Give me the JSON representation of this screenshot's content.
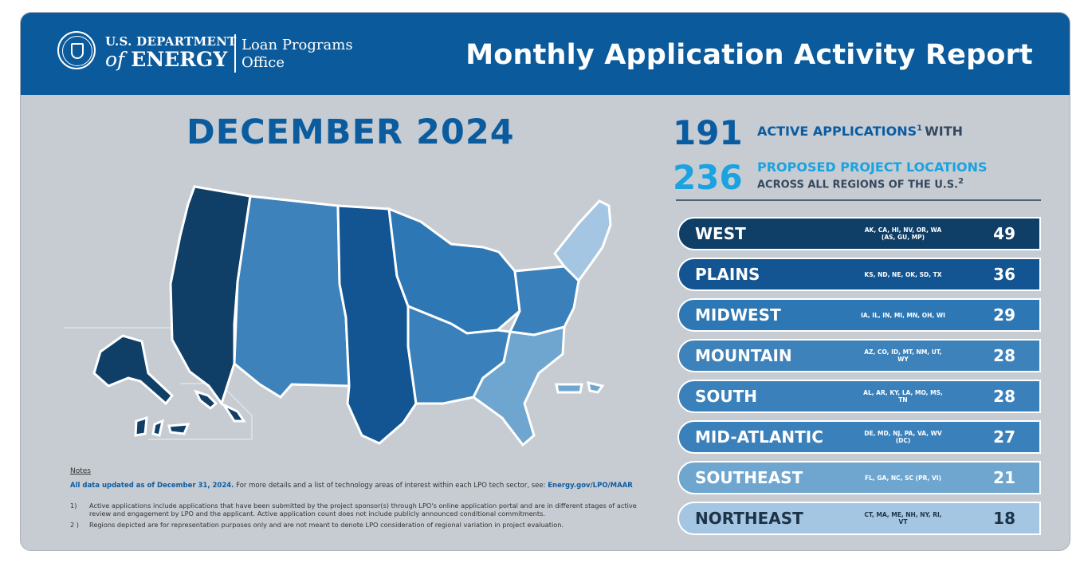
{
  "header": {
    "org_line1": "U.S. DEPARTMENT",
    "org_of": "of",
    "org_energy": "ENERGY",
    "office_line1": "Loan Programs",
    "office_line2": "Office",
    "title": "Monthly Application Activity Report",
    "colors": {
      "bar": "#0b5a9b",
      "text": "#ffffff"
    }
  },
  "period": "DECEMBER 2024",
  "stats": {
    "active_count": "191",
    "active_label": "ACTIVE APPLICATIONS",
    "active_sup": "1",
    "active_suffix": "WITH",
    "locations_count": "236",
    "locations_label": "PROPOSED PROJECT LOCATIONS",
    "locations_sub": "ACROSS ALL REGIONS OF THE U.S.",
    "locations_sup": "2"
  },
  "regions": [
    {
      "name": "WEST",
      "states": "AK, CA, HI, NV, OR, WA (AS, GU, MP)",
      "count": "49",
      "color": "#0f3e66"
    },
    {
      "name": "PLAINS",
      "states": "KS, ND, NE, OK, SD, TX",
      "count": "36",
      "color": "#125592"
    },
    {
      "name": "MIDWEST",
      "states": "IA, IL, IN, MI, MN, OH, WI",
      "count": "29",
      "color": "#2d77b4"
    },
    {
      "name": "MOUNTAIN",
      "states": "AZ, CO, ID, MT, NM, UT, WY",
      "count": "28",
      "color": "#3d82ba"
    },
    {
      "name": "SOUTH",
      "states": "AL, AR, KY, LA, MO, MS, TN",
      "count": "28",
      "color": "#3a80bb"
    },
    {
      "name": "MID-ATLANTIC",
      "states": "DE, MD, NJ, PA, VA, WV (DC)",
      "count": "27",
      "color": "#3a80bb"
    },
    {
      "name": "SOUTHEAST",
      "states": "FL, GA, NC, SC (PR, VI)",
      "count": "21",
      "color": "#6fa6cf"
    },
    {
      "name": "NORTHEAST",
      "states": "CT, MA, ME, NH, NY, RI, VT",
      "count": "18",
      "color": "#a4c6e2"
    }
  ],
  "map_colors": {
    "west": "#0f3e66",
    "plains": "#125592",
    "mountain": "#3d82ba",
    "midwest": "#2d77b4",
    "south": "#3a80bb",
    "midatlantic": "#3a80bb",
    "southeast": "#6fa6cf",
    "northeast": "#a4c6e2"
  },
  "notes": {
    "heading": "Notes",
    "updated_bold": "All data updated as of December 31, 2024.",
    "updated_text": "For more details and a list of technology areas of interest within each LPO tech sector, see:",
    "link": "Energy.gov/LPO/MAAR",
    "items": [
      {
        "num": "1)",
        "text": "Active applications include applications that have been submitted by the project sponsor(s) through LPO's online application portal and are in different stages of active review and engagement by LPO and the applicant. Active application count does not include publicly announced conditional commitments."
      },
      {
        "num": "2 )",
        "text": "Regions depicted are for representation purposes only and are not meant to denote LPO consideration of regional variation in project evaluation."
      }
    ]
  }
}
